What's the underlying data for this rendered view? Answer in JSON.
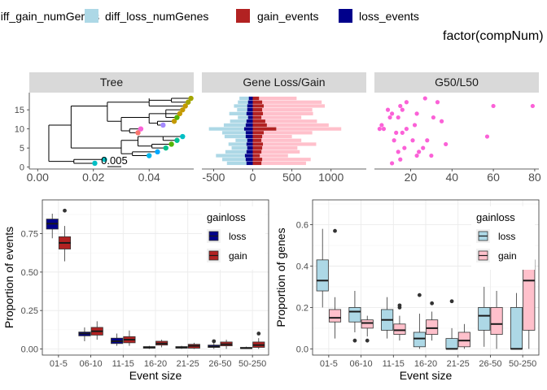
{
  "top_legend": {
    "items": [
      {
        "label": "diff_gain_numGenes",
        "color": "#ffc0cb"
      },
      {
        "label": "diff_loss_numGenes",
        "color": "#add8e6"
      },
      {
        "label": "gain_events",
        "color": "#b22222"
      },
      {
        "label": "loss_events",
        "color": "#00008b"
      }
    ],
    "title_right": "factor(compNum)"
  },
  "chart_data": [
    {
      "type": "scatter",
      "facet": "Tree",
      "xlim": [
        -0.003,
        0.056
      ],
      "ylim": [
        -0.5,
        19.5
      ],
      "x_ticks": [
        0.0,
        0.02,
        0.04
      ],
      "x_tick_labels": [
        "0.00",
        "0.02",
        "0.04"
      ],
      "y_ticks": [
        0,
        5,
        10,
        15
      ],
      "y_tick_labels": [
        "0",
        "5",
        "10",
        "15"
      ],
      "scale_bar_label": "0.005",
      "tips": [
        {
          "x": 0.0205,
          "y": 1,
          "color": "#00bfc4"
        },
        {
          "x": 0.024,
          "y": 2,
          "color": "#00bfc4"
        },
        {
          "x": 0.04,
          "y": 3,
          "color": "#00b6eb"
        },
        {
          "x": 0.043,
          "y": 4,
          "color": "#00a9ff"
        },
        {
          "x": 0.046,
          "y": 5,
          "color": "#00c08b"
        },
        {
          "x": 0.048,
          "y": 6,
          "color": "#53b400"
        },
        {
          "x": 0.05,
          "y": 7,
          "color": "#00c094"
        },
        {
          "x": 0.052,
          "y": 8,
          "color": "#00bfc4"
        },
        {
          "x": 0.036,
          "y": 9,
          "color": "#f8766d"
        },
        {
          "x": 0.037,
          "y": 10,
          "color": "#fb61d7"
        },
        {
          "x": 0.045,
          "y": 11,
          "color": "#a58aff"
        },
        {
          "x": 0.049,
          "y": 12,
          "color": "#c49a00"
        },
        {
          "x": 0.05,
          "y": 13,
          "color": "#53b400"
        },
        {
          "x": 0.051,
          "y": 14,
          "color": "#c49a00"
        },
        {
          "x": 0.052,
          "y": 15,
          "color": "#c49a00"
        },
        {
          "x": 0.053,
          "y": 16,
          "color": "#c49a00"
        },
        {
          "x": 0.054,
          "y": 17,
          "color": "#a3a500"
        },
        {
          "x": 0.055,
          "y": 18,
          "color": "#a3a500"
        }
      ]
    },
    {
      "type": "bar",
      "facet": "Gene Loss/Gain",
      "orientation": "horizontal",
      "xlim": [
        -650,
        1450
      ],
      "ylim": [
        -0.5,
        19.5
      ],
      "x_ticks": [
        -500,
        0,
        500,
        1000
      ],
      "x_tick_labels": [
        "-500",
        "0",
        "500",
        "1000"
      ],
      "categories": [
        1,
        2,
        3,
        4,
        5,
        6,
        7,
        8,
        9,
        10,
        11,
        12,
        13,
        14,
        15,
        16,
        17,
        18
      ],
      "series": [
        {
          "name": "diff_gain_numGenes",
          "color": "#ffc0cb",
          "values": [
            680,
            740,
            450,
            600,
            570,
            810,
            620,
            500,
            760,
            1130,
            970,
            820,
            620,
            770,
            760,
            920,
            880,
            560
          ]
        },
        {
          "name": "diff_loss_numGenes",
          "color": "#add8e6",
          "values": [
            -330,
            -390,
            -470,
            -350,
            -270,
            -310,
            -220,
            -360,
            -390,
            -560,
            -370,
            -290,
            -190,
            -300,
            -200,
            -240,
            -190,
            -170
          ]
        },
        {
          "name": "gain_events",
          "color": "#b22222",
          "values": [
            110,
            120,
            90,
            110,
            120,
            130,
            110,
            120,
            140,
            300,
            180,
            160,
            110,
            130,
            120,
            140,
            120,
            80
          ]
        },
        {
          "name": "loss_events",
          "color": "#00008b",
          "values": [
            -80,
            -90,
            -100,
            -80,
            -70,
            -80,
            -70,
            -90,
            -90,
            -110,
            -90,
            -80,
            -60,
            -80,
            -70,
            -70,
            -60,
            -50
          ]
        }
      ]
    },
    {
      "type": "scatter",
      "facet": "G50/L50",
      "xlim": [
        2.5,
        82
      ],
      "ylim": [
        -0.5,
        19.5
      ],
      "x_ticks": [
        20,
        40,
        60,
        80
      ],
      "x_tick_labels": [
        "20",
        "40",
        "60",
        "80"
      ],
      "point_color": "#fb61d7",
      "points": [
        [
          11,
          1
        ],
        [
          15,
          2
        ],
        [
          23,
          3
        ],
        [
          30,
          3
        ],
        [
          14,
          4
        ],
        [
          24,
          4
        ],
        [
          17,
          5
        ],
        [
          26,
          5
        ],
        [
          37,
          6
        ],
        [
          12,
          7
        ],
        [
          21,
          7
        ],
        [
          28,
          7
        ],
        [
          57,
          8
        ],
        [
          13,
          9
        ],
        [
          16,
          9
        ],
        [
          5,
          10
        ],
        [
          7,
          10
        ],
        [
          18,
          10
        ],
        [
          6,
          11
        ],
        [
          22,
          11
        ],
        [
          35,
          12
        ],
        [
          10,
          13
        ],
        [
          14,
          13
        ],
        [
          31,
          13
        ],
        [
          11,
          14
        ],
        [
          23,
          14
        ],
        [
          9,
          15
        ],
        [
          16,
          15
        ],
        [
          15,
          16
        ],
        [
          60,
          16
        ],
        [
          79,
          16
        ],
        [
          18,
          17
        ],
        [
          33,
          17
        ],
        [
          27,
          18
        ]
      ]
    },
    {
      "type": "box",
      "xlabel": "Event size",
      "ylabel": "Proportion of events",
      "ylim": [
        -0.04,
        0.97
      ],
      "y_ticks": [
        0.0,
        0.25,
        0.5,
        0.75
      ],
      "y_tick_labels": [
        "0.00",
        "0.25",
        "0.50",
        "0.75"
      ],
      "categories": [
        "01-5",
        "06-10",
        "11-15",
        "16-20",
        "21-25",
        "26-50",
        "50-250"
      ],
      "legend": {
        "title": "gainloss",
        "position": "top-right",
        "items": [
          {
            "label": "loss",
            "color": "#00008b"
          },
          {
            "label": "gain",
            "color": "#b22222"
          }
        ]
      },
      "series": [
        {
          "name": "loss",
          "color": "#00008b",
          "boxes": [
            {
              "min": 0.72,
              "q1": 0.78,
              "median": 0.815,
              "q3": 0.845,
              "max": 0.88,
              "outliers": []
            },
            {
              "min": 0.05,
              "q1": 0.085,
              "median": 0.1,
              "q3": 0.11,
              "max": 0.14,
              "outliers": []
            },
            {
              "min": 0.02,
              "q1": 0.035,
              "median": 0.05,
              "q3": 0.07,
              "max": 0.1,
              "outliers": []
            },
            {
              "min": 0.0,
              "q1": 0.005,
              "median": 0.01,
              "q3": 0.015,
              "max": 0.02,
              "outliers": []
            },
            {
              "min": 0.0,
              "q1": 0.005,
              "median": 0.01,
              "q3": 0.015,
              "max": 0.02,
              "outliers": []
            },
            {
              "min": 0.0,
              "q1": 0.01,
              "median": 0.015,
              "q3": 0.025,
              "max": 0.04,
              "outliers": [
                0.05
              ]
            },
            {
              "min": 0.0,
              "q1": 0.003,
              "median": 0.005,
              "q3": 0.01,
              "max": 0.015,
              "outliers": []
            }
          ]
        },
        {
          "name": "gain",
          "color": "#b22222",
          "boxes": [
            {
              "min": 0.57,
              "q1": 0.65,
              "median": 0.69,
              "q3": 0.73,
              "max": 0.8,
              "outliers": [
                0.9
              ]
            },
            {
              "min": 0.06,
              "q1": 0.09,
              "median": 0.115,
              "q3": 0.14,
              "max": 0.18,
              "outliers": []
            },
            {
              "min": 0.02,
              "q1": 0.04,
              "median": 0.06,
              "q3": 0.08,
              "max": 0.12,
              "outliers": []
            },
            {
              "min": 0.01,
              "q1": 0.025,
              "median": 0.035,
              "q3": 0.05,
              "max": 0.06,
              "outliers": []
            },
            {
              "min": 0.0,
              "q1": 0.005,
              "median": 0.02,
              "q3": 0.03,
              "max": 0.04,
              "outliers": []
            },
            {
              "min": 0.0,
              "q1": 0.02,
              "median": 0.03,
              "q3": 0.045,
              "max": 0.06,
              "outliers": []
            },
            {
              "min": 0.0,
              "q1": 0.01,
              "median": 0.025,
              "q3": 0.045,
              "max": 0.07,
              "outliers": [
                0.1
              ]
            }
          ]
        }
      ]
    },
    {
      "type": "box",
      "xlabel": "Event size",
      "ylabel": "Proportion of genes",
      "ylim": [
        -0.03,
        0.72
      ],
      "y_ticks": [
        0.0,
        0.2,
        0.4,
        0.6
      ],
      "y_tick_labels": [
        "0.0",
        "0.2",
        "0.4",
        "0.6"
      ],
      "categories": [
        "01-5",
        "06-10",
        "11-15",
        "16-20",
        "21-25",
        "26-50",
        "50-250"
      ],
      "legend": {
        "title": "gainloss",
        "position": "top-right",
        "items": [
          {
            "label": "loss",
            "color": "#add8e6"
          },
          {
            "label": "gain",
            "color": "#ffc0cb"
          }
        ]
      },
      "series": [
        {
          "name": "loss",
          "color": "#add8e6",
          "boxes": [
            {
              "min": 0.2,
              "q1": 0.28,
              "median": 0.33,
              "q3": 0.43,
              "max": 0.58,
              "outliers": []
            },
            {
              "min": 0.08,
              "q1": 0.13,
              "median": 0.18,
              "q3": 0.2,
              "max": 0.28,
              "outliers": [
                0.04
              ]
            },
            {
              "min": 0.05,
              "q1": 0.09,
              "median": 0.14,
              "q3": 0.19,
              "max": 0.25,
              "outliers": []
            },
            {
              "min": 0.0,
              "q1": 0.01,
              "median": 0.05,
              "q3": 0.08,
              "max": 0.17,
              "outliers": [
                0.26
              ]
            },
            {
              "min": 0.0,
              "q1": 0.0,
              "median": 0.0,
              "q3": 0.05,
              "max": 0.1,
              "outliers": [
                0.23
              ]
            },
            {
              "min": 0.01,
              "q1": 0.09,
              "median": 0.16,
              "q3": 0.2,
              "max": 0.3,
              "outliers": []
            },
            {
              "min": 0.0,
              "q1": 0.0,
              "median": 0.0,
              "q3": 0.2,
              "max": 0.27,
              "outliers": []
            }
          ]
        },
        {
          "name": "gain",
          "color": "#ffc0cb",
          "boxes": [
            {
              "min": 0.05,
              "q1": 0.13,
              "median": 0.15,
              "q3": 0.19,
              "max": 0.25,
              "outliers": [
                0.57
              ]
            },
            {
              "min": 0.06,
              "q1": 0.1,
              "median": 0.125,
              "q3": 0.14,
              "max": 0.16,
              "outliers": [
                0.04
              ]
            },
            {
              "min": 0.04,
              "q1": 0.07,
              "median": 0.09,
              "q3": 0.12,
              "max": 0.16,
              "outliers": [
                0.2,
                0.21
              ]
            },
            {
              "min": 0.04,
              "q1": 0.07,
              "median": 0.1,
              "q3": 0.14,
              "max": 0.18,
              "outliers": [
                0.22
              ]
            },
            {
              "min": 0.0,
              "q1": 0.01,
              "median": 0.04,
              "q3": 0.08,
              "max": 0.12,
              "outliers": []
            },
            {
              "min": 0.0,
              "q1": 0.07,
              "median": 0.12,
              "q3": 0.2,
              "max": 0.28,
              "outliers": []
            },
            {
              "min": 0.0,
              "q1": 0.09,
              "median": 0.33,
              "q3": 0.43,
              "max": 0.45,
              "outliers": []
            }
          ]
        }
      ]
    }
  ]
}
